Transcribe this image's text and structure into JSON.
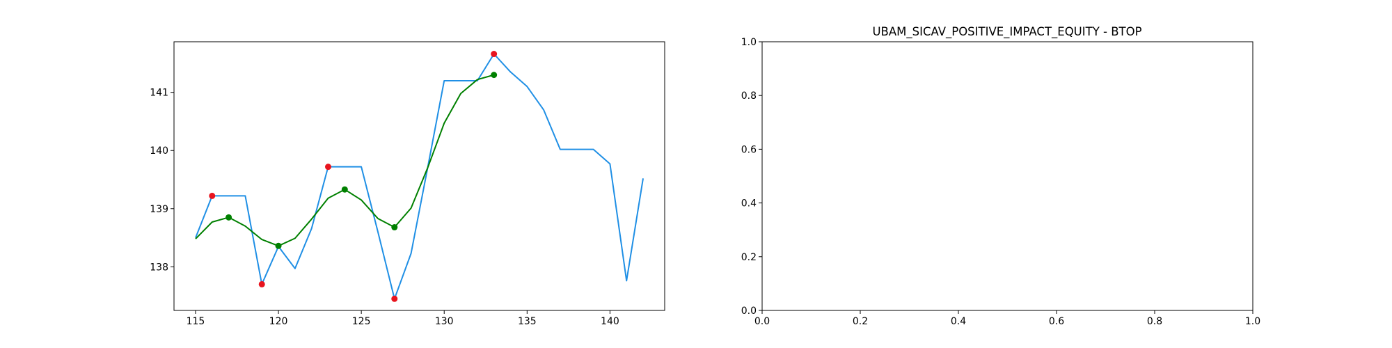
{
  "chart_data": [
    {
      "type": "line",
      "title": "",
      "xlabel": "",
      "ylabel": "",
      "xlim": [
        113.7,
        143.3
      ],
      "ylim": [
        137.25,
        141.87
      ],
      "xticks": [
        115,
        120,
        125,
        130,
        135,
        140
      ],
      "yticks": [
        138,
        139,
        140,
        141
      ],
      "grid": false,
      "series": [
        {
          "color": "#1f8fe5",
          "x": [
            115,
            116,
            117,
            118,
            119,
            120,
            121,
            122,
            123,
            124,
            125,
            126,
            127,
            128,
            129,
            130,
            131,
            132,
            133,
            134,
            135,
            136,
            137,
            138,
            139,
            140,
            141,
            142
          ],
          "y": [
            138.5,
            139.22,
            139.22,
            139.22,
            137.7,
            138.35,
            137.97,
            138.66,
            139.72,
            139.72,
            139.72,
            138.6,
            137.45,
            138.23,
            139.7,
            141.2,
            141.2,
            141.2,
            141.66,
            141.35,
            141.1,
            140.7,
            140.02,
            140.02,
            140.02,
            139.77,
            137.76,
            139.52
          ]
        },
        {
          "color": "#008000",
          "x": [
            115,
            116,
            117,
            118,
            119,
            120,
            121,
            122,
            123,
            124,
            125,
            126,
            127,
            128,
            129,
            130,
            131,
            132,
            133
          ],
          "y": [
            138.48,
            138.77,
            138.85,
            138.7,
            138.47,
            138.36,
            138.49,
            138.82,
            139.18,
            139.33,
            139.15,
            138.83,
            138.68,
            139.01,
            139.7,
            140.47,
            140.98,
            141.22,
            141.3
          ]
        }
      ],
      "markers": [
        {
          "color": "#e8141e",
          "x": [
            116,
            119,
            123,
            127,
            133
          ],
          "y": [
            139.22,
            137.7,
            139.72,
            137.45,
            141.66
          ]
        },
        {
          "color": "#008000",
          "x": [
            117,
            120,
            124,
            127,
            133
          ],
          "y": [
            138.85,
            138.36,
            139.33,
            138.68,
            141.3
          ]
        }
      ]
    },
    {
      "type": "line",
      "title": "UBAM_SICAV_POSITIVE_IMPACT_EQUITY - BTOP",
      "xlabel": "",
      "ylabel": "",
      "xlim": [
        0,
        1
      ],
      "ylim": [
        0,
        1
      ],
      "xticks": [
        "0.0",
        "0.2",
        "0.4",
        "0.6",
        "0.8",
        "1.0"
      ],
      "yticks": [
        "0.0",
        "0.2",
        "0.4",
        "0.6",
        "0.8",
        "1.0"
      ],
      "grid": false,
      "series": []
    }
  ]
}
